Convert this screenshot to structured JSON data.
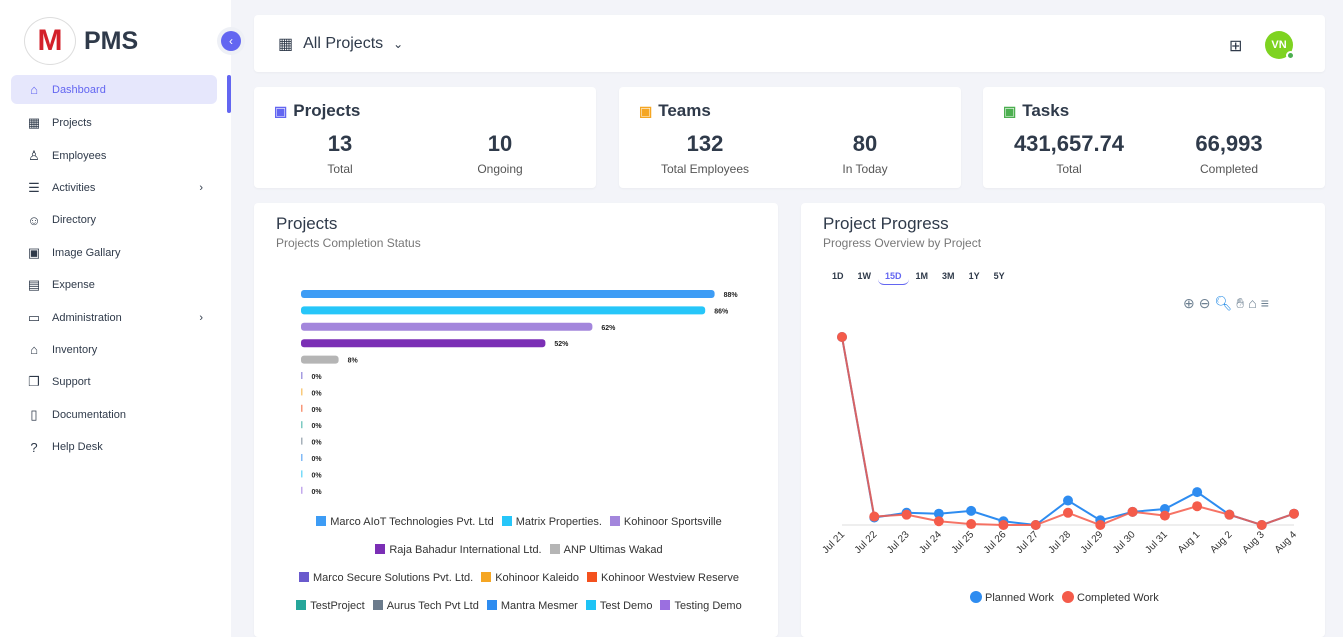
{
  "brand": {
    "logo_letter": "M",
    "name": "PMS"
  },
  "sidebar": {
    "items": [
      {
        "label": "Dashboard",
        "icon": "home-icon",
        "glyph": "⌂",
        "active": true
      },
      {
        "label": "Projects",
        "icon": "building-icon",
        "glyph": "▦"
      },
      {
        "label": "Employees",
        "icon": "user-icon",
        "glyph": "♙"
      },
      {
        "label": "Activities",
        "icon": "list-icon",
        "glyph": "☰",
        "chevron": true
      },
      {
        "label": "Directory",
        "icon": "users-icon",
        "glyph": "☺"
      },
      {
        "label": "Image Gallary",
        "icon": "image-icon",
        "glyph": "▣"
      },
      {
        "label": "Expense",
        "icon": "receipt-icon",
        "glyph": "▤"
      },
      {
        "label": "Administration",
        "icon": "archive-icon",
        "glyph": "▭",
        "chevron": true
      },
      {
        "label": "Inventory",
        "icon": "store-icon",
        "glyph": "⌂"
      },
      {
        "label": "Support",
        "icon": "copy-icon",
        "glyph": "❐"
      },
      {
        "label": "Documentation",
        "icon": "book-icon",
        "glyph": "▯"
      },
      {
        "label": "Help Desk",
        "icon": "question-icon",
        "glyph": "?"
      }
    ]
  },
  "header": {
    "project_select": "All Projects",
    "avatar": "VN"
  },
  "stats": [
    {
      "title": "Projects",
      "icon": "building-icon",
      "color": "#6366f1",
      "items": [
        {
          "value": "13",
          "label": "Total"
        },
        {
          "value": "10",
          "label": "Ongoing"
        }
      ]
    },
    {
      "title": "Teams",
      "icon": "users-icon",
      "color": "#f5a623",
      "items": [
        {
          "value": "132",
          "label": "Total Employees"
        },
        {
          "value": "80",
          "label": "In Today"
        }
      ]
    },
    {
      "title": "Tasks",
      "icon": "clipboard-check-icon",
      "color": "#4caf50",
      "items": [
        {
          "value": "431,657.74",
          "label": "Total"
        },
        {
          "value": "66,993",
          "label": "Completed"
        }
      ]
    }
  ],
  "chart_data": [
    {
      "type": "bar",
      "orientation": "horizontal",
      "title": "Projects",
      "subtitle": "Projects Completion Status",
      "categories": [
        "Marco AIoT Technologies Pvt. Ltd",
        "Matrix Properties.",
        "Kohinoor Sportsville",
        "Raja Bahadur International Ltd.",
        "ANP Ultimas Wakad",
        "Marco Secure Solutions Pvt. Ltd.",
        "Kohinoor Kaleido",
        "Kohinoor Westview Reserve",
        "TestProject",
        "Aurus Tech Pvt Ltd",
        "Mantra Mesmer",
        "Test Demo",
        "Testing Demo"
      ],
      "values": [
        88,
        86,
        62,
        52,
        8,
        0,
        0,
        0,
        0,
        0,
        0,
        0,
        0
      ],
      "colors": [
        "#3d9cf5",
        "#26c6f9",
        "#a386dc",
        "#7b2fb5",
        "#b5b5b5",
        "#6a5acd",
        "#f5a623",
        "#f4511e",
        "#26a69a",
        "#6b7b8c",
        "#2e8cf0",
        "#1ec3f5",
        "#9b6fe0"
      ],
      "legend": "bottom",
      "xlim": [
        0,
        100
      ]
    },
    {
      "type": "line",
      "title": "Project Progress",
      "subtitle": "Progress Overview by Project",
      "range_buttons": [
        "1D",
        "1W",
        "15D",
        "1M",
        "3M",
        "1Y",
        "5Y"
      ],
      "selected_range": "15D",
      "x": [
        "Jul 21",
        "Jul 22",
        "Jul 23",
        "Jul 24",
        "Jul 25",
        "Jul 26",
        "Jul 27",
        "Jul 28",
        "Jul 29",
        "Jul 30",
        "Jul 31",
        "Aug 1",
        "Aug 2",
        "Aug 3",
        "Aug 4"
      ],
      "series": [
        {
          "name": "Planned Work",
          "color": "#2e8cf0",
          "values": [
            100,
            4,
            6.5,
            6,
            7.5,
            2,
            0,
            13,
            2.5,
            7,
            8.5,
            17.5,
            5.5,
            0,
            6
          ]
        },
        {
          "name": "Completed Work",
          "color": "#f45b4a",
          "values": [
            100,
            4.5,
            5.5,
            2,
            0.5,
            0,
            0,
            6.5,
            0,
            7,
            5,
            10,
            5.5,
            0,
            6
          ]
        }
      ],
      "ylim": [
        0,
        100
      ],
      "legend": "bottom",
      "grid": false
    }
  ]
}
